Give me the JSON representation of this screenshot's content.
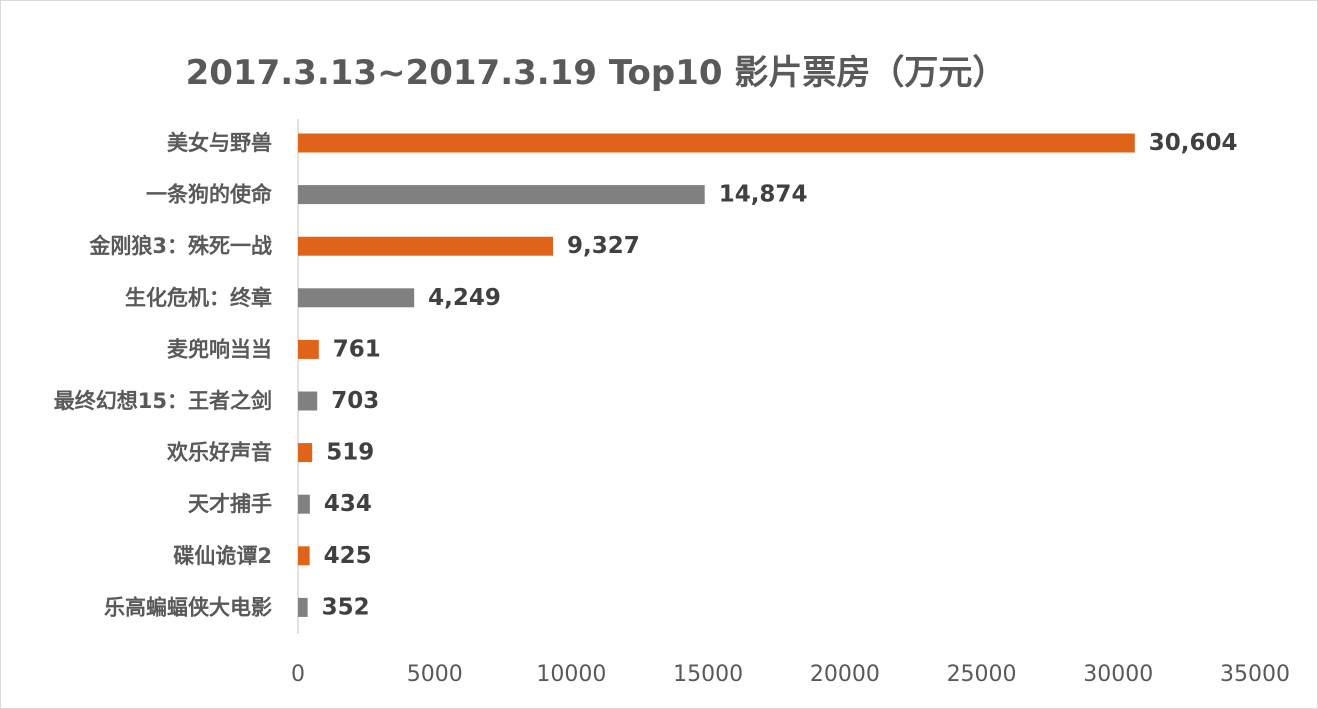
{
  "chart_data": {
    "type": "bar",
    "orientation": "horizontal",
    "title": "2017.3.13~2017.3.19 Top10 影片票房（万元）",
    "categories": [
      "美女与野兽",
      "一条狗的使命",
      "金刚狼3：殊死一战",
      "生化危机：终章",
      "麦兜响当当",
      "最终幻想15：王者之剑",
      "欢乐好声音",
      "天才捕手",
      "碟仙诡谭2",
      "乐高蝙蝠侠大电影"
    ],
    "values": [
      30604,
      14874,
      9327,
      4249,
      761,
      703,
      519,
      434,
      425,
      352
    ],
    "value_labels": [
      "30,604",
      "14,874",
      "9,327",
      "4,249",
      "761",
      "703",
      "519",
      "434",
      "425",
      "352"
    ],
    "bar_colors": [
      "#e0631a",
      "#808080",
      "#e0631a",
      "#808080",
      "#e0631a",
      "#808080",
      "#e0631a",
      "#808080",
      "#e0631a",
      "#808080"
    ],
    "xlim": [
      0,
      35000
    ],
    "xticks": [
      0,
      5000,
      10000,
      15000,
      20000,
      25000,
      30000,
      35000
    ],
    "xtick_labels": [
      "0",
      "5000",
      "10000",
      "15000",
      "20000",
      "25000",
      "30000",
      "35000"
    ],
    "grid": false,
    "legend": "none"
  }
}
